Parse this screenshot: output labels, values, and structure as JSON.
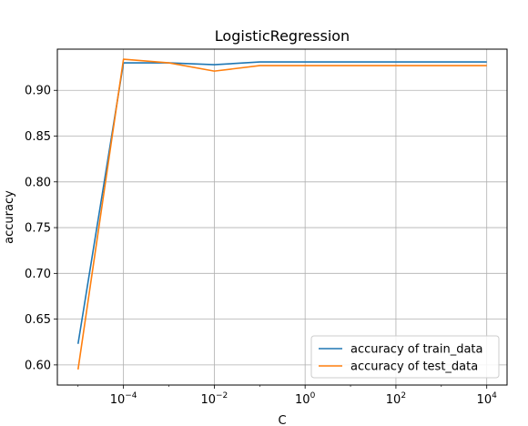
{
  "chart_data": {
    "type": "line",
    "title": "LogisticRegression",
    "xlabel": "C",
    "ylabel": "accuracy",
    "xscale": "log",
    "x": [
      1e-05,
      0.0001,
      0.001,
      0.01,
      0.1,
      1,
      10,
      100,
      1000,
      10000
    ],
    "xlim": [
      3.5e-06,
      28000
    ],
    "ylim": [
      0.578,
      0.945
    ],
    "xticks": [
      {
        "value": 0.0001,
        "base": "10",
        "exp": "−4"
      },
      {
        "value": 0.01,
        "base": "10",
        "exp": "−2"
      },
      {
        "value": 1,
        "base": "10",
        "exp": "0"
      },
      {
        "value": 100,
        "base": "10",
        "exp": "2"
      },
      {
        "value": 10000,
        "base": "10",
        "exp": "4"
      }
    ],
    "yticks": [
      "0.60",
      "0.65",
      "0.70",
      "0.75",
      "0.80",
      "0.85",
      "0.90"
    ],
    "grid": true,
    "legend_position": "lower-right",
    "series": [
      {
        "name": "accuracy of train_data",
        "color": "#1f77b4",
        "values": [
          0.623,
          0.93,
          0.93,
          0.928,
          0.931,
          0.931,
          0.931,
          0.931,
          0.931,
          0.931
        ]
      },
      {
        "name": "accuracy of test_data",
        "color": "#ff7f0e",
        "values": [
          0.595,
          0.934,
          0.93,
          0.921,
          0.927,
          0.927,
          0.927,
          0.927,
          0.927,
          0.927
        ]
      }
    ]
  }
}
